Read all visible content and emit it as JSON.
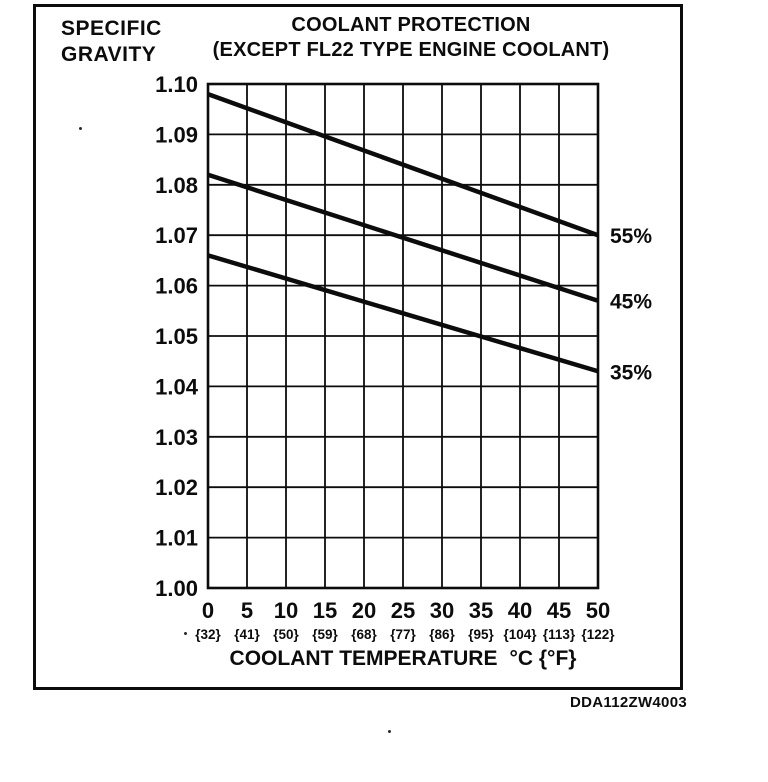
{
  "ylabel_block": {
    "line1": "SPECIFIC",
    "line2": "GRAVITY"
  },
  "title_block": {
    "line1": "COOLANT PROTECTION",
    "line2": "(EXCEPT FL22 TYPE ENGINE COOLANT)"
  },
  "figure_code": "DDA112ZW4003",
  "ink_color": "#0c0c0c",
  "chart_data": {
    "type": "line",
    "title": "COOLANT PROTECTION (EXCEPT FL22 TYPE ENGINE COOLANT)",
    "ylabel": "SPECIFIC GRAVITY",
    "xlabel": {
      "text": "COOLANT TEMPERATURE",
      "units": "°C {°F}"
    },
    "xlim": [
      0,
      50
    ],
    "ylim": [
      1.0,
      1.1
    ],
    "grid": true,
    "x_ticks": [
      {
        "c": "0",
        "f": "{32}"
      },
      {
        "c": "5",
        "f": "{41}"
      },
      {
        "c": "10",
        "f": "{50}"
      },
      {
        "c": "15",
        "f": "{59}"
      },
      {
        "c": "20",
        "f": "{68}"
      },
      {
        "c": "25",
        "f": "{77}"
      },
      {
        "c": "30",
        "f": "{86}"
      },
      {
        "c": "35",
        "f": "{95}"
      },
      {
        "c": "40",
        "f": "{104}"
      },
      {
        "c": "45",
        "f": "{113}"
      },
      {
        "c": "50",
        "f": "{122}"
      }
    ],
    "y_ticks": [
      "1.10",
      "1.09",
      "1.08",
      "1.07",
      "1.06",
      "1.05",
      "1.04",
      "1.03",
      "1.02",
      "1.01",
      "1.00"
    ],
    "series": [
      {
        "name": "55%",
        "x": [
          0,
          50
        ],
        "values": [
          1.098,
          1.07
        ]
      },
      {
        "name": "45%",
        "x": [
          0,
          50
        ],
        "values": [
          1.082,
          1.057
        ]
      },
      {
        "name": "35%",
        "x": [
          0,
          50
        ],
        "values": [
          1.066,
          1.043
        ]
      }
    ],
    "legend_position": "right of line ends"
  }
}
